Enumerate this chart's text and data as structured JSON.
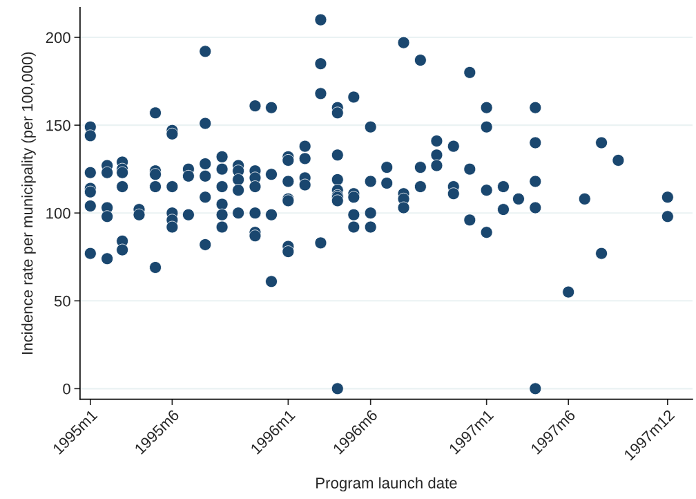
{
  "chart_data": {
    "type": "scatter",
    "xlabel": "Program launch date",
    "ylabel": "Incidence rate per municipality (per 100,000)",
    "x": [
      "1995-01",
      "1995-01",
      "1995-01",
      "1995-01",
      "1995-01",
      "1995-01",
      "1995-01",
      "1995-02",
      "1995-02",
      "1995-02",
      "1995-02",
      "1995-02",
      "1995-03",
      "1995-03",
      "1995-03",
      "1995-03",
      "1995-03",
      "1995-03",
      "1995-04",
      "1995-04",
      "1995-05",
      "1995-05",
      "1995-05",
      "1995-05",
      "1995-05",
      "1995-06",
      "1995-06",
      "1995-06",
      "1995-06",
      "1995-06",
      "1995-06",
      "1995-07",
      "1995-07",
      "1995-07",
      "1995-08",
      "1995-08",
      "1995-08",
      "1995-08",
      "1995-08",
      "1995-08",
      "1995-09",
      "1995-09",
      "1995-09",
      "1995-09",
      "1995-09",
      "1995-09",
      "1995-10",
      "1995-10",
      "1995-10",
      "1995-10",
      "1995-10",
      "1995-11",
      "1995-11",
      "1995-11",
      "1995-11",
      "1995-11",
      "1995-11",
      "1995-11",
      "1995-12",
      "1995-12",
      "1995-12",
      "1995-12",
      "1996-01",
      "1996-01",
      "1996-01",
      "1996-01",
      "1996-01",
      "1996-01",
      "1996-01",
      "1996-02",
      "1996-02",
      "1996-02",
      "1996-02",
      "1996-03",
      "1996-03",
      "1996-03",
      "1996-03",
      "1996-04",
      "1996-04",
      "1996-04",
      "1996-04",
      "1996-04",
      "1996-04",
      "1996-04",
      "1996-04",
      "1996-04",
      "1996-05",
      "1996-05",
      "1996-05",
      "1996-05",
      "1996-05",
      "1996-06",
      "1996-06",
      "1996-06",
      "1996-06",
      "1996-07",
      "1996-07",
      "1996-08",
      "1996-08",
      "1996-08",
      "1996-08",
      "1996-09",
      "1996-09",
      "1996-09",
      "1996-10",
      "1996-10",
      "1996-10",
      "1996-11",
      "1996-11",
      "1996-11",
      "1996-12",
      "1996-12",
      "1996-12",
      "1997-01",
      "1997-01",
      "1997-01",
      "1997-01",
      "1997-02",
      "1997-02",
      "1997-03",
      "1997-04",
      "1997-04",
      "1997-04",
      "1997-04",
      "1997-04",
      "1997-06",
      "1997-07",
      "1997-08",
      "1997-08",
      "1997-09",
      "1997-12",
      "1997-12"
    ],
    "series": [
      {
        "color": "#1a476f",
        "values": [
          149,
          144,
          123,
          114,
          112,
          104,
          77,
          127,
          123,
          103,
          98,
          74,
          129,
          125,
          123,
          115,
          84,
          79,
          102,
          99,
          157,
          124,
          122,
          115,
          69,
          147,
          145,
          115,
          100,
          96,
          92,
          125,
          121,
          99,
          192,
          151,
          128,
          121,
          109,
          82,
          132,
          125,
          115,
          105,
          99,
          92,
          127,
          124,
          119,
          113,
          100,
          161,
          124,
          120,
          115,
          100,
          89,
          87,
          160,
          122,
          99,
          61,
          132,
          130,
          118,
          108,
          107,
          81,
          78,
          138,
          131,
          120,
          116,
          210,
          185,
          168,
          83,
          160,
          157,
          133,
          119,
          113,
          110,
          109,
          107,
          0,
          166,
          111,
          109,
          99,
          92,
          149,
          118,
          100,
          92,
          126,
          117,
          197,
          111,
          108,
          103,
          187,
          126,
          115,
          141,
          133,
          127,
          138,
          115,
          111,
          180,
          125,
          96,
          160,
          149,
          113,
          89,
          115,
          102,
          108,
          160,
          140,
          118,
          103,
          0,
          55,
          108,
          140,
          77,
          130,
          109,
          98
        ]
      }
    ],
    "xlim": [
      "1994-12-13",
      "1998-01-16"
    ],
    "ylim": [
      -6,
      217
    ],
    "xticks": [
      {
        "value": "1995-01",
        "label": "1995m1"
      },
      {
        "value": "1995-06",
        "label": "1995m6"
      },
      {
        "value": "1996-01",
        "label": "1996m1"
      },
      {
        "value": "1996-06",
        "label": "1996m6"
      },
      {
        "value": "1997-01",
        "label": "1997m1"
      },
      {
        "value": "1997-06",
        "label": "1997m6"
      },
      {
        "value": "1997-12",
        "label": "1997m12"
      }
    ],
    "yticks": [
      0,
      50,
      100,
      150,
      200
    ],
    "grid": "y",
    "marker": "circle"
  }
}
